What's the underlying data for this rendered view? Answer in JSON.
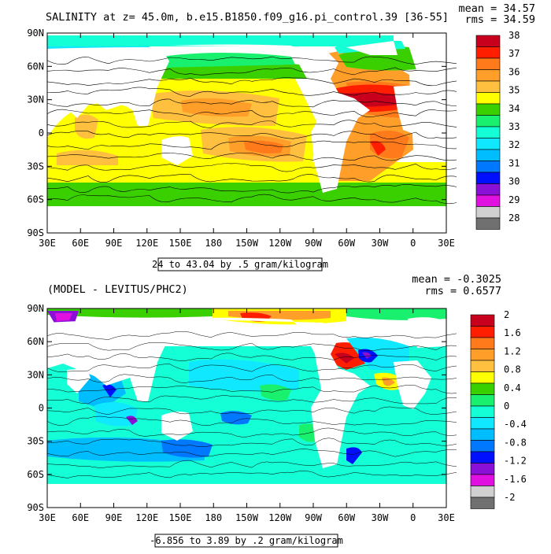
{
  "chart_data": [
    {
      "type": "heatmap",
      "title": "SALINITY at z=  45.0m, b.e15.B1850.f09_g16.pi_control.39 [36-55]",
      "stats": {
        "mean": "mean = 34.57",
        "rms": "rms = 34.59"
      },
      "range_caption": "24 to 43.04 by .5 gram/kilogram",
      "x_ticks": [
        "30E",
        "60E",
        "90E",
        "120E",
        "150E",
        "180",
        "150W",
        "120W",
        "90W",
        "60W",
        "30W",
        "0",
        "30E"
      ],
      "y_ticks": [
        "90N",
        "60N",
        "30N",
        "0",
        "30S",
        "60S",
        "90S"
      ],
      "colorbar": {
        "labels": [
          "38",
          "37",
          "36",
          "35",
          "34",
          "33",
          "32",
          "31",
          "30",
          "29",
          "28"
        ],
        "colors": [
          "#c8001e",
          "#ff1e00",
          "#ff7a1a",
          "#ff9f2a",
          "#ffc040",
          "#ffff00",
          "#3ad000",
          "#19f06e",
          "#15ffd6",
          "#0fe8ff",
          "#00bdff",
          "#0078ff",
          "#0010ff",
          "#8a10d8",
          "#e010e0",
          "#d0d0d0",
          "#707070"
        ]
      }
    },
    {
      "type": "heatmap",
      "title": "(MODEL - LEVITUS/PHC2)",
      "stats": {
        "mean": "mean = -0.3025",
        "rms": "rms = 0.6577"
      },
      "range_caption": "-6.856 to 3.89 by .2 gram/kilogram",
      "x_ticks": [
        "30E",
        "60E",
        "90E",
        "120E",
        "150E",
        "180",
        "150W",
        "120W",
        "90W",
        "60W",
        "30W",
        "0",
        "30E"
      ],
      "y_ticks": [
        "90N",
        "60N",
        "30N",
        "0",
        "30S",
        "60S",
        "90S"
      ],
      "colorbar": {
        "labels": [
          "2",
          "1.6",
          "1.2",
          "0.8",
          "0.4",
          "0",
          "-0.4",
          "-0.8",
          "-1.2",
          "-1.6",
          "-2"
        ],
        "colors": [
          "#c8001e",
          "#ff1e00",
          "#ff7a1a",
          "#ff9f2a",
          "#ffc040",
          "#ffff00",
          "#3ad000",
          "#19f06e",
          "#15ffd6",
          "#0fe8ff",
          "#00bdff",
          "#0078ff",
          "#0010ff",
          "#8a10d8",
          "#e010e0",
          "#d0d0d0",
          "#707070"
        ]
      }
    }
  ]
}
